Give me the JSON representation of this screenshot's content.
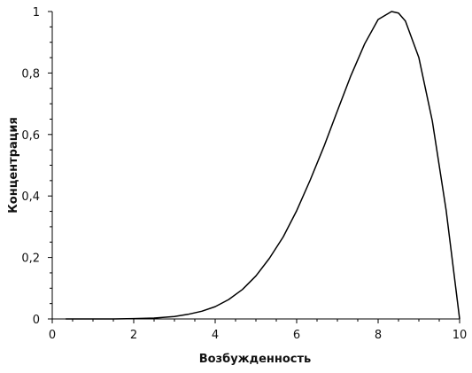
{
  "chart_data": {
    "type": "line",
    "xlabel": "Возбужденность",
    "ylabel": "Концентрация",
    "xlim": [
      0,
      10
    ],
    "ylim": [
      0,
      1
    ],
    "x_ticks": [
      0,
      2,
      4,
      6,
      8,
      10
    ],
    "x_tick_labels": [
      "0",
      "2",
      "4",
      "6",
      "8",
      "10"
    ],
    "y_ticks": [
      0,
      0.2,
      0.4,
      0.6,
      0.8,
      1
    ],
    "y_tick_labels": [
      "0",
      "0,2",
      "0,4",
      "0,6",
      "0,8",
      "1"
    ],
    "grid": false,
    "series": [
      {
        "color": "#000000",
        "x": [
          0.33,
          1.0,
          1.5,
          2.0,
          2.5,
          3.0,
          3.33,
          3.67,
          4.0,
          4.33,
          4.67,
          5.0,
          5.33,
          5.67,
          6.0,
          6.33,
          6.67,
          7.0,
          7.33,
          7.67,
          8.0,
          8.33,
          8.5,
          8.67,
          9.0,
          9.33,
          9.67,
          10.0
        ],
        "y": [
          0.0,
          0.0,
          0.0,
          0.001,
          0.003,
          0.008,
          0.015,
          0.025,
          0.04,
          0.063,
          0.096,
          0.14,
          0.197,
          0.267,
          0.352,
          0.451,
          0.561,
          0.677,
          0.791,
          0.895,
          0.974,
          1.0,
          0.995,
          0.969,
          0.85,
          0.644,
          0.353,
          0.0
        ]
      }
    ]
  }
}
